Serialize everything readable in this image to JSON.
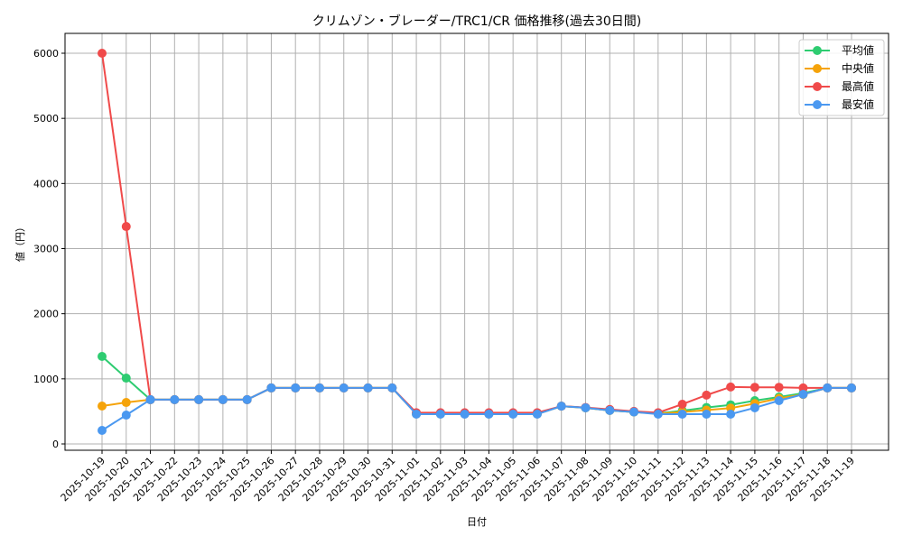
{
  "chart_data": {
    "type": "line",
    "title": "クリムゾン・ブレーダー/TRC1/CR 価格推移(過去30日間)",
    "xlabel": "日付",
    "ylabel": "値（円）",
    "ylim": [
      -80,
      6280
    ],
    "yticks": [
      0,
      1000,
      2000,
      3000,
      4000,
      5000,
      6000
    ],
    "grid": true,
    "legend_position": "upper right",
    "categories": [
      "2025-10-19",
      "2025-10-20",
      "2025-10-21",
      "2025-10-22",
      "2025-10-23",
      "2025-10-24",
      "2025-10-25",
      "2025-10-26",
      "2025-10-27",
      "2025-10-28",
      "2025-10-29",
      "2025-10-30",
      "2025-10-31",
      "2025-11-01",
      "2025-11-02",
      "2025-11-03",
      "2025-11-04",
      "2025-11-05",
      "2025-11-06",
      "2025-11-07",
      "2025-11-08",
      "2025-11-09",
      "2025-11-10",
      "2025-11-11",
      "2025-11-12",
      "2025-11-13",
      "2025-11-14",
      "2025-11-15",
      "2025-11-16",
      "2025-11-17",
      "2025-11-18",
      "2025-11-19"
    ],
    "series": [
      {
        "name": "平均値",
        "color": "#2ecc71",
        "values": [
          1344,
          1011,
          680,
          680,
          680,
          680,
          680,
          860,
          860,
          860,
          860,
          860,
          860,
          465,
          465,
          465,
          465,
          465,
          465,
          580,
          555,
          515,
          490,
          470,
          510,
          560,
          600,
          665,
          720,
          780,
          860,
          860
        ]
      },
      {
        "name": "中央値",
        "color": "#f5a30a",
        "values": [
          582,
          637,
          680,
          680,
          680,
          680,
          680,
          860,
          860,
          860,
          860,
          860,
          860,
          460,
          460,
          460,
          460,
          460,
          460,
          580,
          555,
          515,
          490,
          465,
          490,
          520,
          550,
          620,
          700,
          760,
          860,
          860
        ]
      },
      {
        "name": "最高値",
        "color": "#f04a4a",
        "values": [
          6000,
          3339,
          680,
          680,
          680,
          680,
          680,
          860,
          860,
          860,
          860,
          860,
          860,
          480,
          480,
          480,
          480,
          480,
          480,
          580,
          560,
          530,
          500,
          480,
          610,
          750,
          875,
          870,
          870,
          860,
          860,
          860
        ]
      },
      {
        "name": "最安値",
        "color": "#4a98f0",
        "values": [
          208,
          443,
          680,
          680,
          680,
          680,
          680,
          860,
          860,
          860,
          860,
          860,
          860,
          457,
          457,
          457,
          457,
          457,
          457,
          580,
          555,
          515,
          490,
          457,
          457,
          457,
          457,
          555,
          665,
          762,
          860,
          860
        ]
      }
    ]
  }
}
